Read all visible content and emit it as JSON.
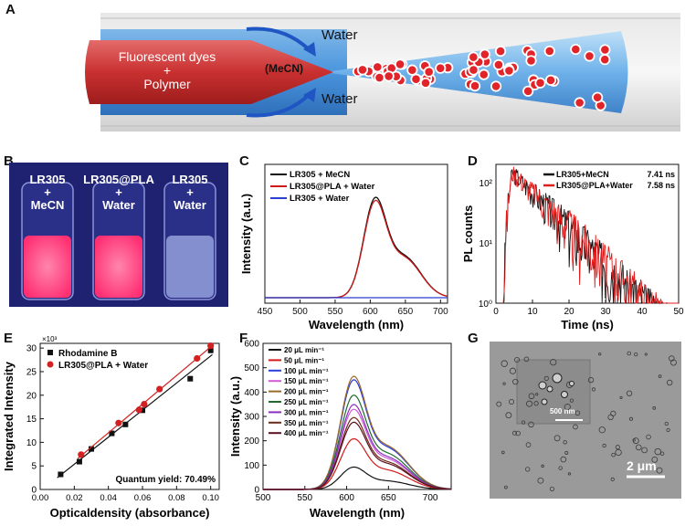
{
  "panels": {
    "A": {
      "letter": "A",
      "dye_line1": "Fluorescent dyes",
      "plus": "+",
      "dye_line2": "Polymer",
      "solvent": "(MeCN)",
      "water_top": "Water",
      "water_bottom": "Water"
    },
    "B": {
      "letter": "B",
      "vials": [
        {
          "line1": "LR305",
          "plus": "+",
          "line2": "MeCN"
        },
        {
          "line1": "LR305@PLA",
          "plus": "+",
          "line2": "Water"
        },
        {
          "line1": "LR305",
          "plus": "+",
          "line2": "Water"
        }
      ],
      "colors": {
        "bg": "#1e2270",
        "glow": "#ff4f8a",
        "clear": "#c7d2f0"
      }
    },
    "C": {
      "letter": "C"
    },
    "D": {
      "letter": "D"
    },
    "E": {
      "letter": "E"
    },
    "F": {
      "letter": "F"
    },
    "G": {
      "letter": "G",
      "inset_scale": "500 nm",
      "scale": "2 μm"
    }
  },
  "chart_data": [
    {
      "id": "C",
      "type": "line",
      "xlabel": "Wavelength (nm)",
      "ylabel": "Intensity (a.u.)",
      "xlim": [
        450,
        710
      ],
      "xticks": [
        450,
        500,
        550,
        600,
        650,
        700
      ],
      "legend": "top-left",
      "series": [
        {
          "name": "LR305 + MeCN",
          "color": "#111111",
          "peak": 606,
          "amp": 1.0
        },
        {
          "name": "LR305@PLA + Water",
          "color": "#cc1a1a",
          "peak": 606,
          "amp": 0.97
        },
        {
          "name": "LR305 + Water",
          "color": "#2a3fd0",
          "peak": 606,
          "amp": 0.0
        }
      ]
    },
    {
      "id": "D",
      "type": "line",
      "xlabel": "Time (ns)",
      "ylabel": "PL counts",
      "xlim": [
        0,
        50
      ],
      "ylim_log": [
        1,
        200
      ],
      "xticks": [
        0,
        10,
        20,
        30,
        40,
        50
      ],
      "yticks": [
        "10⁰",
        "10¹",
        "10²"
      ],
      "legend": "top-right",
      "series": [
        {
          "name": "LR305+MeCN",
          "lifetime": "7.41 ns",
          "color": "#111111",
          "tau": 7.41
        },
        {
          "name": "LR305@PLA+Water",
          "lifetime": "7.58 ns",
          "color": "#e21b1b",
          "tau": 7.58
        }
      ]
    },
    {
      "id": "E",
      "type": "scatter",
      "xlabel": "Opticaldensity (absorbance)",
      "ylabel": "Integrated Intensity",
      "multiplier": "×10³",
      "xlim": [
        0.0,
        0.105
      ],
      "ylim": [
        0,
        31
      ],
      "xticks": [
        "0.00",
        "0.02",
        "0.04",
        "0.06",
        "0.08",
        "0.10"
      ],
      "yticks": [
        0,
        5,
        10,
        15,
        20,
        25,
        30
      ],
      "annotation": "Quantum yield: 70.49%",
      "series": [
        {
          "name": "Rhodamine B",
          "marker": "square",
          "color": "#111111",
          "x": [
            0.012,
            0.023,
            0.03,
            0.042,
            0.05,
            0.06,
            0.088,
            0.1
          ],
          "y": [
            3.2,
            5.9,
            8.6,
            11.9,
            13.8,
            16.8,
            23.5,
            29.5
          ]
        },
        {
          "name": "LR305@PLA + Water",
          "marker": "circle",
          "color": "#d42020",
          "x": [
            0.024,
            0.046,
            0.058,
            0.061,
            0.07,
            0.092,
            0.1
          ],
          "y": [
            7.4,
            14.1,
            16.9,
            18.1,
            21.3,
            27.8,
            30.5
          ]
        }
      ]
    },
    {
      "id": "F",
      "type": "line",
      "xlabel": "Wavelength (nm)",
      "ylabel": "Intensity (a.u.)",
      "xlim": [
        500,
        725
      ],
      "ylim": [
        0,
        600
      ],
      "xticks": [
        500,
        550,
        600,
        650,
        700
      ],
      "yticks": [
        0,
        100,
        200,
        300,
        400,
        500,
        600
      ],
      "legend": "top-left",
      "series": [
        {
          "name": "20 μL min⁻¹",
          "color": "#111111",
          "peak_value": 95
        },
        {
          "name": "50 μL min⁻¹",
          "color": "#d11a1a",
          "peak_value": 215
        },
        {
          "name": "100 μL min⁻¹",
          "color": "#2b3ee0",
          "peak_value": 465
        },
        {
          "name": "150 μL min⁻¹",
          "color": "#d25bd6",
          "peak_value": 340
        },
        {
          "name": "200 μL min⁻¹",
          "color": "#9a6a2a",
          "peak_value": 480
        },
        {
          "name": "250 μL min⁻¹",
          "color": "#1f6b2a",
          "peak_value": 400
        },
        {
          "name": "300 μL min⁻¹",
          "color": "#8a2fc2",
          "peak_value": 360
        },
        {
          "name": "350 μL min⁻¹",
          "color": "#6b2a1a",
          "peak_value": 305
        },
        {
          "name": "400 μL min⁻¹",
          "color": "#5a1020",
          "peak_value": 285
        }
      ]
    }
  ]
}
